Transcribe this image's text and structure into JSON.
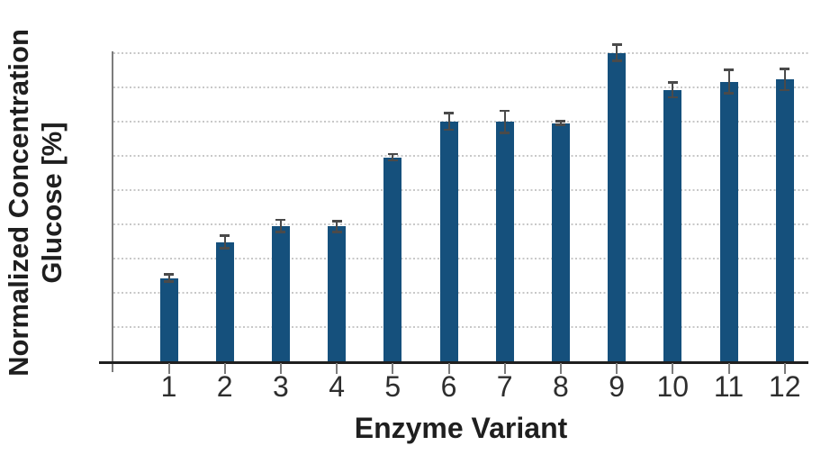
{
  "figure": {
    "background": "#ffffff"
  },
  "y_axis": {
    "label_line1": "Normalized Concentration",
    "label_line2": "Glucose [%]",
    "tick_labels_shown": false
  },
  "x_axis": {
    "label": "Enzyme Variant",
    "tick_labels": [
      "1",
      "2",
      "3",
      "4",
      "5",
      "6",
      "7",
      "8",
      "9",
      "10",
      "11",
      "12"
    ]
  },
  "chart_data": {
    "type": "bar",
    "title": "",
    "xlabel": "Enzyme Variant",
    "ylabel": "Normalized Concentration Glucose [%]",
    "categories": [
      "1",
      "2",
      "3",
      "4",
      "5",
      "6",
      "7",
      "8",
      "9",
      "10",
      "11",
      "12"
    ],
    "values": [
      24.3,
      34.8,
      39.5,
      39.3,
      59.5,
      70.0,
      69.8,
      69.5,
      90.0,
      79.2,
      81.6,
      82.2
    ],
    "error_bars": [
      1.0,
      1.8,
      1.8,
      1.6,
      0.9,
      2.4,
      3.2,
      0.5,
      2.4,
      2.2,
      3.4,
      3.1
    ],
    "ylim": [
      0,
      97.5
    ],
    "gridlines": {
      "from": 10,
      "to": 90,
      "step": 10,
      "style": "dotted"
    },
    "legend": "none",
    "bar_color": "#15507C",
    "error_bar_color": "#4a4a4a"
  },
  "colors": {
    "bar": "#15507C",
    "error_bar": "#4a4a4a",
    "gridline": "#c8c8c8",
    "x_axis_line": "#1f1f1f",
    "y_axis_line": "#7c7c7c",
    "tick_label": "#2e2e2e",
    "axis_title": "#1f1f1f"
  }
}
